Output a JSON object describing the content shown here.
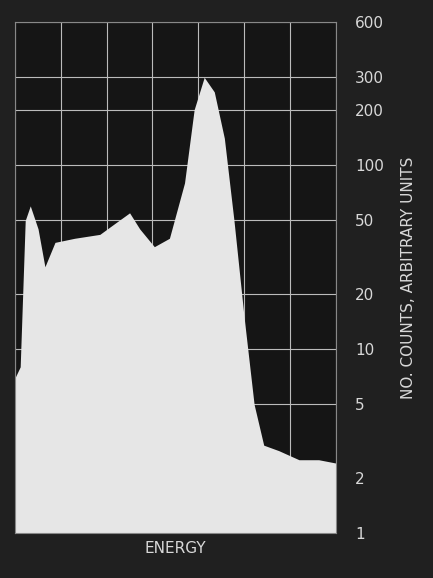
{
  "chart_data": {
    "type": "area",
    "xlabel": "ENERGY",
    "ylabel": "NO. COUNTS, ARBITRARY UNITS",
    "x": [
      0,
      0.11,
      0.22,
      0.33,
      0.5,
      0.65,
      0.87,
      1.3,
      1.85,
      2.17,
      2.5,
      2.72,
      3.04,
      3.37,
      3.7,
      3.91,
      4.13,
      4.35,
      4.57,
      4.78,
      5.0,
      5.22,
      5.43,
      5.76,
      6.2,
      6.63,
      7
    ],
    "values": [
      7,
      8,
      50,
      60,
      45,
      28,
      38,
      40,
      42,
      48,
      55,
      45,
      36,
      40,
      80,
      200,
      300,
      250,
      140,
      50,
      15,
      5,
      3,
      2.8,
      2.5,
      2.5,
      2.4
    ],
    "color": "#e6e6e6",
    "xlim": [
      0,
      7
    ],
    "xticks": [
      0,
      1,
      2,
      3,
      4,
      5,
      6,
      7
    ],
    "ylim": [
      1,
      600
    ],
    "yticks": [
      1,
      2,
      5,
      10,
      20,
      50,
      100,
      200,
      300,
      600
    ],
    "log": "y",
    "grid": true,
    "tick_labels": "y"
  }
}
